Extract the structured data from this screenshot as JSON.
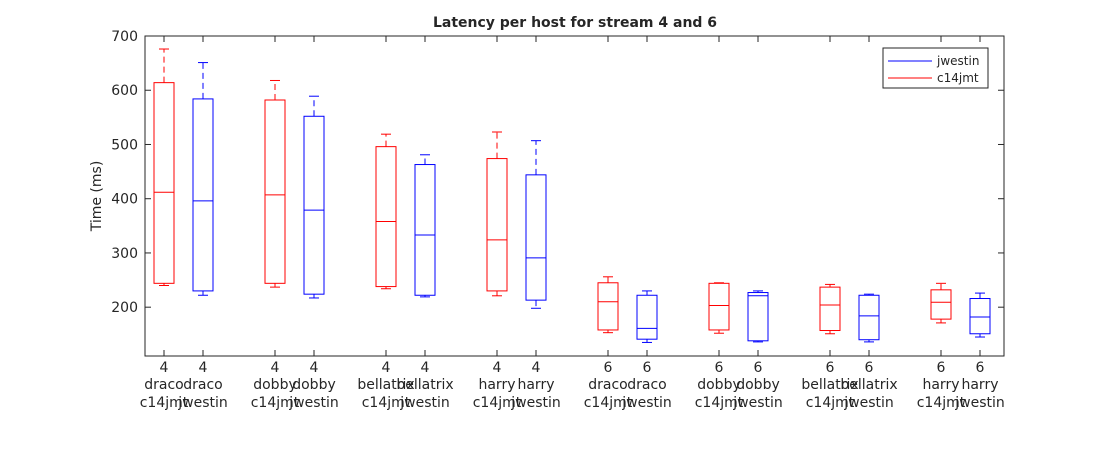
{
  "chart_data": {
    "type": "boxplot",
    "title": "Latency per host for stream 4 and 6",
    "xlabel": "",
    "ylabel": "Time (ms)",
    "ylim": [
      110,
      700
    ],
    "yticks": [
      200,
      300,
      400,
      500,
      600,
      700
    ],
    "grid": false,
    "legend_position": "top-right",
    "legend": [
      {
        "name": "jwestin",
        "color": "#0000ff"
      },
      {
        "name": "c14jmt",
        "color": "#ff0000"
      }
    ],
    "categories": [
      {
        "stream": "4",
        "host": "draco",
        "user": "c14jmt",
        "color": "#ff0000",
        "min": 240,
        "q1": 244,
        "median": 412,
        "q3": 614,
        "max": 676
      },
      {
        "stream": "4",
        "host": "draco",
        "user": "jwestin",
        "color": "#0000ff",
        "min": 222,
        "q1": 230,
        "median": 396,
        "q3": 584,
        "max": 651
      },
      {
        "stream": "4",
        "host": "dobby",
        "user": "c14jmt",
        "color": "#ff0000",
        "min": 237,
        "q1": 244,
        "median": 407,
        "q3": 582,
        "max": 618
      },
      {
        "stream": "4",
        "host": "dobby",
        "user": "jwestin",
        "color": "#0000ff",
        "min": 217,
        "q1": 224,
        "median": 379,
        "q3": 552,
        "max": 589
      },
      {
        "stream": "4",
        "host": "bellatrix",
        "user": "c14jmt",
        "color": "#ff0000",
        "min": 234,
        "q1": 238,
        "median": 358,
        "q3": 496,
        "max": 519
      },
      {
        "stream": "4",
        "host": "bellatrix",
        "user": "jwestin",
        "color": "#0000ff",
        "min": 219,
        "q1": 222,
        "median": 333,
        "q3": 463,
        "max": 481
      },
      {
        "stream": "4",
        "host": "harry",
        "user": "c14jmt",
        "color": "#ff0000",
        "min": 221,
        "q1": 230,
        "median": 324,
        "q3": 474,
        "max": 523
      },
      {
        "stream": "4",
        "host": "harry",
        "user": "jwestin",
        "color": "#0000ff",
        "min": 198,
        "q1": 213,
        "median": 291,
        "q3": 444,
        "max": 507
      },
      {
        "stream": "6",
        "host": "draco",
        "user": "c14jmt",
        "color": "#ff0000",
        "min": 153,
        "q1": 158,
        "median": 210,
        "q3": 245,
        "max": 256
      },
      {
        "stream": "6",
        "host": "draco",
        "user": "jwestin",
        "color": "#0000ff",
        "min": 135,
        "q1": 141,
        "median": 161,
        "q3": 222,
        "max": 230
      },
      {
        "stream": "6",
        "host": "dobby",
        "user": "c14jmt",
        "color": "#ff0000",
        "min": 152,
        "q1": 158,
        "median": 203,
        "q3": 244,
        "max": 245
      },
      {
        "stream": "6",
        "host": "dobby",
        "user": "jwestin",
        "color": "#0000ff",
        "min": 136,
        "q1": 138,
        "median": 221,
        "q3": 227,
        "max": 230
      },
      {
        "stream": "6",
        "host": "bellatrix",
        "user": "c14jmt",
        "color": "#ff0000",
        "min": 151,
        "q1": 157,
        "median": 204,
        "q3": 237,
        "max": 242
      },
      {
        "stream": "6",
        "host": "bellatrix",
        "user": "jwestin",
        "color": "#0000ff",
        "min": 136,
        "q1": 140,
        "median": 184,
        "q3": 222,
        "max": 224
      },
      {
        "stream": "6",
        "host": "harry",
        "user": "c14jmt",
        "color": "#ff0000",
        "min": 171,
        "q1": 178,
        "median": 209,
        "q3": 232,
        "max": 244
      },
      {
        "stream": "6",
        "host": "harry",
        "user": "jwestin",
        "color": "#0000ff",
        "min": 145,
        "q1": 151,
        "median": 182,
        "q3": 216,
        "max": 226
      }
    ]
  }
}
